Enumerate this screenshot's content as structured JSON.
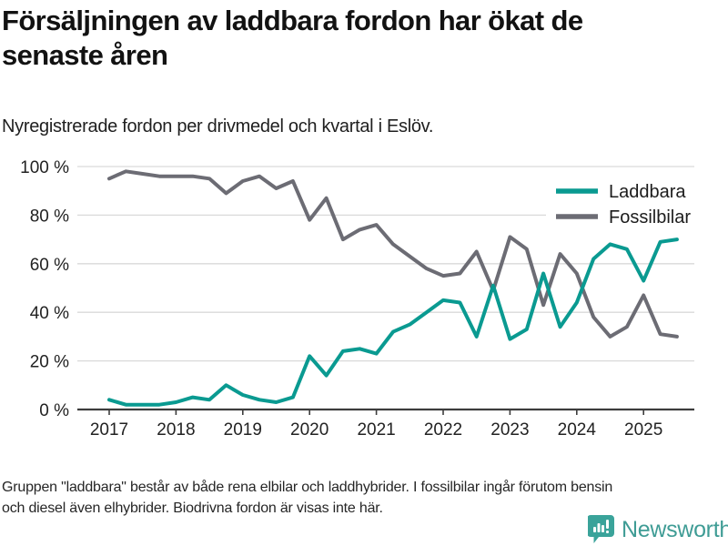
{
  "header": {
    "title": "Försäljningen av laddbara fordon har ökat de senaste åren",
    "title_lines": [
      "Försäljningen av laddbara fordon har ökat de",
      "senaste åren"
    ],
    "subtitle": "Nyregistrerade fordon per drivmedel och kvartal i Eslöv."
  },
  "chart_data": {
    "type": "line",
    "title": "Försäljningen av laddbara fordon har ökat de senaste åren",
    "subtitle": "Nyregistrerade fordon per drivmedel och kvartal i Eslöv.",
    "categories": [
      "2017 Q1",
      "2017 Q2",
      "2017 Q3",
      "2017 Q4",
      "2018 Q1",
      "2018 Q2",
      "2018 Q3",
      "2018 Q4",
      "2019 Q1",
      "2019 Q2",
      "2019 Q3",
      "2019 Q4",
      "2020 Q1",
      "2020 Q2",
      "2020 Q3",
      "2020 Q4",
      "2021 Q1",
      "2021 Q2",
      "2021 Q3",
      "2021 Q4",
      "2022 Q1",
      "2022 Q2",
      "2022 Q3",
      "2022 Q4",
      "2023 Q1",
      "2023 Q2",
      "2023 Q3",
      "2023 Q4",
      "2024 Q1",
      "2024 Q2",
      "2024 Q3",
      "2024 Q4",
      "2025 Q1",
      "2025 Q2",
      "2025 Q3"
    ],
    "series": [
      {
        "name": "Laddbara",
        "color": "#0a9a91",
        "values": [
          4,
          2,
          2,
          2,
          3,
          5,
          4,
          10,
          6,
          4,
          3,
          5,
          22,
          14,
          24,
          25,
          23,
          32,
          35,
          40,
          45,
          44,
          30,
          51,
          29,
          33,
          56,
          34,
          44,
          62,
          68,
          66,
          53,
          69,
          70
        ]
      },
      {
        "name": "Fossilbilar",
        "color": "#6c6c74",
        "values": [
          95,
          98,
          97,
          96,
          96,
          96,
          95,
          89,
          94,
          96,
          91,
          94,
          78,
          87,
          70,
          74,
          76,
          68,
          63,
          58,
          55,
          56,
          65,
          49,
          71,
          66,
          43,
          64,
          56,
          38,
          30,
          34,
          47,
          31,
          30
        ]
      }
    ],
    "x_tick_labels": [
      "2017",
      "2018",
      "2019",
      "2020",
      "2021",
      "2022",
      "2023",
      "2024",
      "2025"
    ],
    "y_ticks": [
      0,
      20,
      40,
      60,
      80,
      100
    ],
    "y_tick_labels": [
      "0 %",
      "20 %",
      "40 %",
      "60 %",
      "80 %",
      "100 %"
    ],
    "ylim": [
      0,
      100
    ],
    "grid": "horizontal",
    "legend_position": "top-right",
    "colors": {
      "grid": "#d9d9d9",
      "axis": "#3d3d3d",
      "tick_text": "#222222"
    }
  },
  "footer": {
    "note": "Gruppen \"laddbara\" består av både rena elbilar och laddhybrider. I fossilbilar ingår förutom bensin och diesel även elhybrider. Biodrivna fordon är visas inte här.",
    "note_lines": [
      "Gruppen \"laddbara\" består av både rena elbilar och laddhybrider. I fossilbilar ingår förutom bensin",
      "och diesel även elhybrider. Biodrivna fordon är visas inte här."
    ],
    "brand": "Newsworthy",
    "brand_color": "#3f9c95",
    "logo_icon": "bar-chart-speech-bubble-icon"
  }
}
